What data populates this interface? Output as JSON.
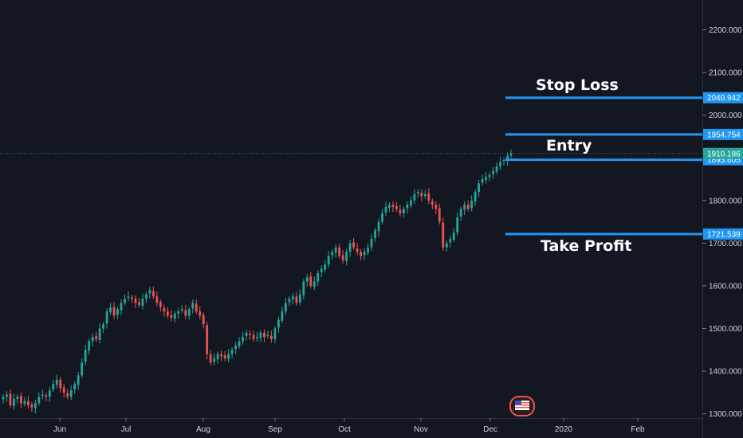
{
  "chart_data": {
    "type": "candlestick",
    "y_axis": {
      "ticks": [
        "2200.000",
        "2100.000",
        "2000.000",
        "1900.000",
        "1800.000",
        "1700.000",
        "1600.000",
        "1500.000",
        "1400.000",
        "1300.000"
      ],
      "range": [
        1290,
        2270
      ]
    },
    "x_axis": {
      "ticks": [
        "Jun",
        "Jul",
        "Aug",
        "Sep",
        "Oct",
        "Nov",
        "Dec",
        "2020",
        "Feb"
      ]
    },
    "levels": [
      {
        "name": "Stop Loss",
        "value": "2040.942",
        "color": "#2196f3"
      },
      {
        "name": "",
        "value": "1954.754",
        "color": "#2196f3"
      },
      {
        "name": "Entry",
        "value": "1895.605",
        "color": "#2196f3"
      },
      {
        "name": "Take Profit",
        "value": "1721.539",
        "color": "#2196f3"
      }
    ],
    "labels": {
      "stop_loss": "Stop Loss",
      "entry": "Entry",
      "take_profit": "Take Profit"
    },
    "last_price": {
      "value": "1910.186",
      "color": "#26a69a"
    },
    "colors": {
      "up": "#26a69a",
      "down": "#ef5350",
      "grid": "#1e222d",
      "level": "#2196f3"
    },
    "closes": [
      1340,
      1345,
      1320,
      1335,
      1340,
      1325,
      1330,
      1320,
      1315,
      1325,
      1340,
      1345,
      1340,
      1355,
      1370,
      1380,
      1360,
      1350,
      1340,
      1355,
      1370,
      1390,
      1420,
      1450,
      1470,
      1480,
      1475,
      1500,
      1510,
      1540,
      1550,
      1530,
      1545,
      1560,
      1570,
      1575,
      1570,
      1560,
      1555,
      1570,
      1580,
      1590,
      1575,
      1560,
      1550,
      1540,
      1530,
      1525,
      1535,
      1540,
      1545,
      1530,
      1545,
      1560,
      1540,
      1530,
      1510,
      1440,
      1420,
      1430,
      1440,
      1435,
      1430,
      1440,
      1450,
      1460,
      1470,
      1480,
      1490,
      1485,
      1475,
      1480,
      1490,
      1480,
      1485,
      1475,
      1500,
      1520,
      1540,
      1560,
      1570,
      1575,
      1560,
      1580,
      1610,
      1620,
      1600,
      1610,
      1630,
      1640,
      1650,
      1670,
      1680,
      1690,
      1670,
      1660,
      1680,
      1700,
      1690,
      1680,
      1670,
      1680,
      1690,
      1710,
      1730,
      1750,
      1770,
      1785,
      1790,
      1785,
      1780,
      1770,
      1780,
      1790,
      1800,
      1815,
      1820,
      1810,
      1815,
      1800,
      1790,
      1780,
      1750,
      1690,
      1700,
      1710,
      1725,
      1760,
      1780,
      1790,
      1780,
      1800,
      1820,
      1840,
      1850,
      1855,
      1860,
      1870,
      1880,
      1890,
      1895,
      1905,
      1910
    ]
  }
}
